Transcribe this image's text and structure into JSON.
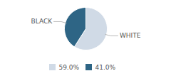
{
  "chart_data": {
    "type": "pie",
    "categories": [
      "WHITE",
      "BLACK"
    ],
    "values": [
      59.0,
      41.0
    ],
    "value_labels": [
      "59.0%",
      "41.0%"
    ],
    "colors": [
      "#d0dae6",
      "#2e6585"
    ],
    "legend": "bottom"
  }
}
